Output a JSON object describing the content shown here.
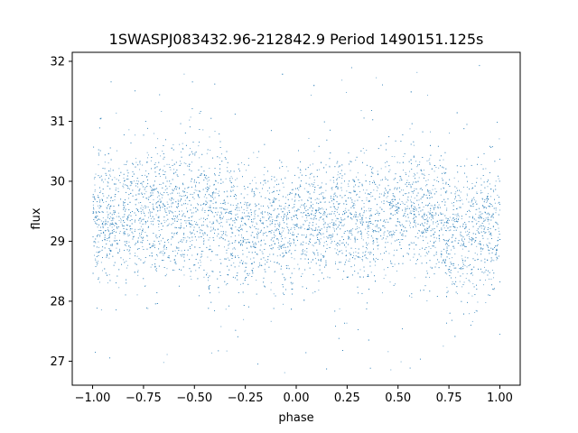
{
  "chart_data": {
    "type": "scatter",
    "title": "1SWASPJ083432.96-212842.9 Period 1490151.125s",
    "xlabel": "phase",
    "ylabel": "flux",
    "xlim": [
      -1.1,
      1.1
    ],
    "ylim": [
      26.6,
      32.15
    ],
    "xticks": [
      -1.0,
      -0.75,
      -0.5,
      -0.25,
      0.0,
      0.25,
      0.5,
      0.75,
      1.0
    ],
    "xtick_labels": [
      "−1.00",
      "−0.75",
      "−0.50",
      "−0.25",
      "0.00",
      "0.25",
      "0.50",
      "0.75",
      "1.00"
    ],
    "yticks": [
      27,
      28,
      29,
      30,
      31,
      32
    ],
    "ytick_labels": [
      "27",
      "28",
      "29",
      "30",
      "31",
      "32"
    ],
    "grid": false,
    "legend": "none",
    "marker_color": "#1f77b4",
    "series": [
      {
        "x_range": [
          -1.0,
          1.0
        ],
        "flux_profile_phase": [
          -1.0,
          -0.9,
          -0.8,
          -0.7,
          -0.6,
          -0.5,
          -0.4,
          -0.3,
          -0.25,
          -0.2,
          -0.1,
          0.0,
          0.1,
          0.2,
          0.3,
          0.4,
          0.5,
          0.6,
          0.7,
          0.75,
          0.8,
          0.9,
          1.0
        ],
        "flux_profile_median": [
          29.3,
          29.4,
          29.5,
          29.5,
          29.5,
          29.5,
          29.5,
          29.3,
          29.1,
          29.2,
          29.3,
          29.2,
          29.3,
          29.4,
          29.4,
          29.4,
          29.5,
          29.5,
          29.4,
          29.1,
          29.1,
          29.2,
          29.3
        ],
        "flux_profile_spread": [
          0.4,
          0.4,
          0.4,
          0.4,
          0.4,
          0.45,
          0.45,
          0.4,
          0.4,
          0.4,
          0.35,
          0.35,
          0.35,
          0.35,
          0.4,
          0.4,
          0.4,
          0.4,
          0.4,
          0.45,
          0.4,
          0.4,
          0.4
        ],
        "outlier_flux_range": [
          26.8,
          31.95
        ]
      }
    ]
  }
}
